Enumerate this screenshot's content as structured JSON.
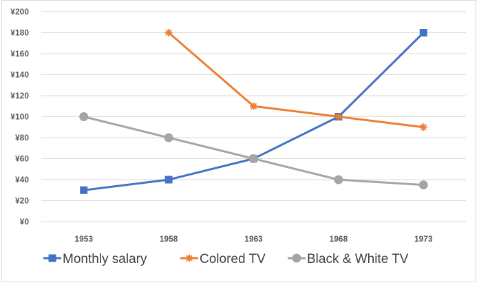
{
  "chart_data": {
    "type": "line",
    "categories": [
      "1953",
      "1958",
      "1963",
      "1968",
      "1973"
    ],
    "series": [
      {
        "name": "Monthly salary",
        "values": [
          30,
          40,
          60,
          100,
          180
        ],
        "color": "#4472c4",
        "marker": "square"
      },
      {
        "name": "Colored TV",
        "values": [
          null,
          180,
          110,
          100,
          90
        ],
        "color": "#ed7d31",
        "marker": "star"
      },
      {
        "name": "Black & White TV",
        "values": [
          100,
          80,
          60,
          40,
          35
        ],
        "color": "#a5a5a5",
        "marker": "circle"
      }
    ],
    "ylim": [
      0,
      200
    ],
    "yticks": [
      0,
      20,
      40,
      60,
      80,
      100,
      120,
      140,
      160,
      180,
      200
    ],
    "ytick_labels": [
      "¥0",
      "¥20",
      "¥40",
      "¥60",
      "¥80",
      "¥100",
      "¥120",
      "¥140",
      "¥160",
      "¥180",
      "¥200"
    ],
    "grid": true,
    "legend_position": "bottom",
    "title": "",
    "xlabel": "",
    "ylabel": ""
  }
}
